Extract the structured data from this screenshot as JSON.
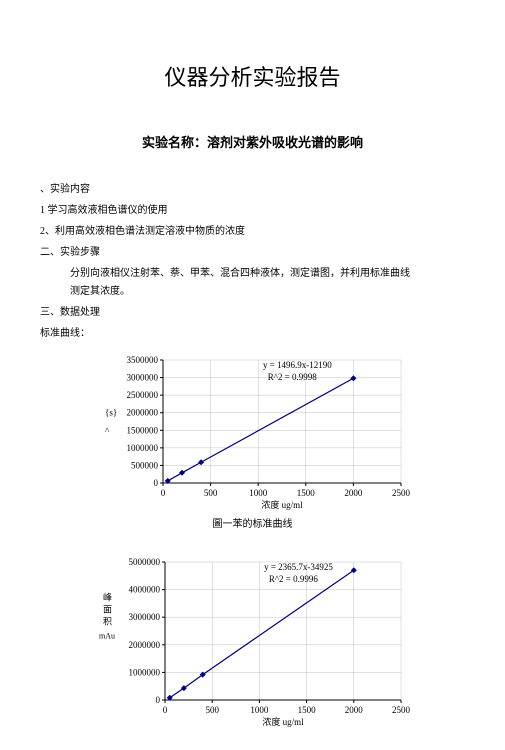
{
  "title": "仪器分析实验报告",
  "subtitle": "实验名称：溶剂对紫外吸收光谱的影响",
  "lines": {
    "l1": "、实验内容",
    "l2": "1 学习高效液相色谱仪的使用",
    "l3": "2、利用高效液相色谱法测定溶液中物质的浓度",
    "l4": "二、实验步骤",
    "l5_left": "分别向液相仪注射苯、萘、甲苯、混合四种液体，测定谱图，并利用标准曲线",
    "l5_right": "测定其浓度。",
    "l6": "三、数据处理",
    "l7": "标准曲线："
  },
  "chart1": {
    "type": "line",
    "eq1": "y = 1496.9x-12190",
    "eq2": "R^2 = 0.9998",
    "caption": "圖一苯的标准曲线",
    "xlim": [
      0,
      2500
    ],
    "xtick_step": 500,
    "ylim": [
      0,
      3500000
    ],
    "ytick_step": 500000,
    "xlabel": "浓度 ug/ml",
    "ylabels": [
      "{s}",
      "^"
    ],
    "points": [
      {
        "x": 50,
        "y": 60000
      },
      {
        "x": 200,
        "y": 290000
      },
      {
        "x": 400,
        "y": 590000
      },
      {
        "x": 2000,
        "y": 2980000
      }
    ],
    "line_color": "#000080",
    "marker_color": "#000080",
    "text_color": "#000000",
    "grid_color": "#c0c0c0",
    "tick_fontsize": 9,
    "eq_fontsize": 9
  },
  "chart2": {
    "type": "line",
    "eq1": "y = 2365.7x-34925",
    "eq2": "R^2 = 0.9996",
    "xlim": [
      0,
      2500
    ],
    "xtick_step": 500,
    "ylim": [
      0,
      5000000
    ],
    "ytick_step": 1000000,
    "xlabel": "浓度 ug/ml",
    "ylabel_chars": [
      "峰",
      "面",
      "积"
    ],
    "ylabel_suffix": "mAu",
    "points": [
      {
        "x": 50,
        "y": 80000
      },
      {
        "x": 200,
        "y": 430000
      },
      {
        "x": 400,
        "y": 920000
      },
      {
        "x": 2000,
        "y": 4700000
      }
    ],
    "line_color": "#000080",
    "marker_color": "#000080",
    "text_color": "#000000",
    "grid_color": "#c0c0c0",
    "tick_fontsize": 9,
    "eq_fontsize": 9
  }
}
